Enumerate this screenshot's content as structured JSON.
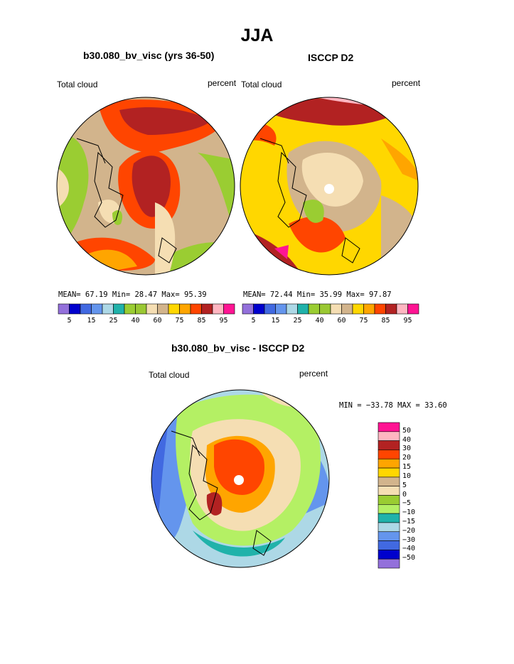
{
  "figure": {
    "title": "JJA",
    "colors": {
      "top_scale": [
        "#9370DB",
        "#0000CD",
        "#4169E1",
        "#6495ED",
        "#ADD8E6",
        "#20B2AA",
        "#9ACD32",
        "#9AC832",
        "#F5DEB3",
        "#D2B48C",
        "#FFD700",
        "#FFA500",
        "#FF4500",
        "#B22222",
        "#FFB6C1",
        "#FF1493"
      ],
      "diff_scale": [
        "#FF1493",
        "#FFB6C1",
        "#B22222",
        "#FF4500",
        "#FFA500",
        "#FFD700",
        "#D2B48C",
        "#F5DEB3",
        "#9ACD32",
        "#B4F064",
        "#20B2AA",
        "#ADD8E6",
        "#6495ED",
        "#4169E1",
        "#0000CD",
        "#9370DB"
      ],
      "map_colors": {
        "red": "#B22222",
        "orange": "#FF4500",
        "amber": "#FFA500",
        "yellow": "#FFD700",
        "tan": "#D2B48C",
        "wheat": "#F5DEB3",
        "green": "#9ACD32",
        "lightgreen": "#B4F064",
        "teal": "#20B2AA",
        "lightblue": "#ADD8E6",
        "blue": "#6495ED",
        "royal": "#4169E1",
        "pink": "#FFB6C1",
        "magenta": "#FF1493"
      }
    }
  },
  "panels": {
    "model": {
      "title": "b30.080_bv_visc (yrs 36-50)",
      "left_label": "Total cloud",
      "right_label": "percent",
      "stats": "MEAN=  67.19  Min=  28.47  Max=  95.39"
    },
    "obs": {
      "title": "ISCCP D2",
      "left_label": "Total cloud",
      "right_label": "percent",
      "stats": "MEAN=  72.44  Min=  35.99  Max=  97.87"
    },
    "diff": {
      "title": "b30.080_bv_visc - ISCCP D2",
      "left_label": "Total cloud",
      "right_label": "percent",
      "stats": "MIN = −33.78 MAX =  33.60"
    }
  },
  "top_colorbar_labels": [
    "5",
    "15",
    "25",
    "40",
    "60",
    "75",
    "85",
    "95"
  ],
  "diff_colorbar_labels": [
    "50",
    "40",
    "30",
    "20",
    "15",
    "10",
    "5",
    "0",
    "−5",
    "−10",
    "−15",
    "−20",
    "−30",
    "−40",
    "−50"
  ]
}
